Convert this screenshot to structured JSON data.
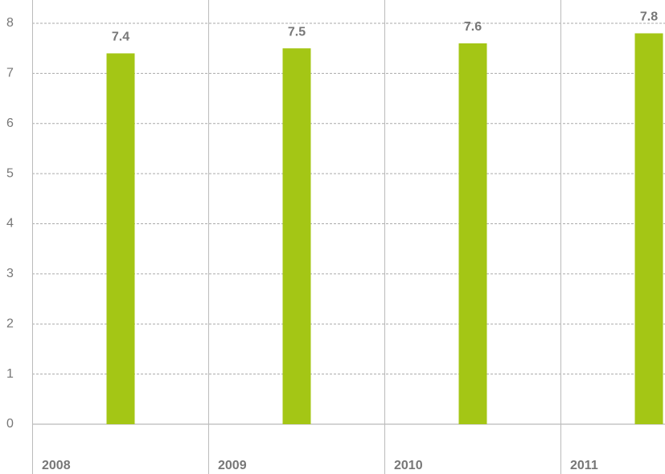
{
  "chart_data": {
    "type": "bar",
    "categories": [
      "2008",
      "2009",
      "2010",
      "2011"
    ],
    "values": [
      7.4,
      7.5,
      7.6,
      7.8
    ],
    "color": "#a4c615",
    "ylim": [
      0,
      8
    ],
    "yticks": [
      0,
      1,
      2,
      3,
      4,
      5,
      6,
      7,
      8
    ],
    "grid": true
  }
}
